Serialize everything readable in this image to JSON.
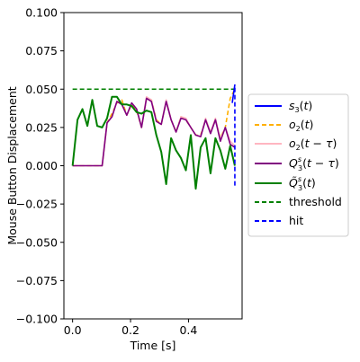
{
  "chart_data": {
    "type": "line",
    "xlabel": "Time [s]",
    "ylabel": "Mouse Button Displacement",
    "xlim": [
      -0.03,
      0.585
    ],
    "ylim": [
      -0.1,
      0.1
    ],
    "xticks": [
      0.0,
      0.2,
      0.4
    ],
    "xtick_labels": [
      "0.0",
      "0.2",
      "0.4"
    ],
    "yticks": [
      -0.1,
      -0.075,
      -0.05,
      -0.025,
      0.0,
      0.025,
      0.05,
      0.075,
      0.1
    ],
    "ytick_labels": [
      "−0.100",
      "−0.075",
      "−0.050",
      "−0.025",
      "0.000",
      "0.025",
      "0.050",
      "0.075",
      "0.100"
    ],
    "grid": false,
    "legend_position": "outside right",
    "x": [
      0.0,
      0.017,
      0.034,
      0.051,
      0.068,
      0.085,
      0.102,
      0.119,
      0.136,
      0.153,
      0.17,
      0.187,
      0.204,
      0.221,
      0.238,
      0.255,
      0.272,
      0.289,
      0.306,
      0.323,
      0.34,
      0.357,
      0.374,
      0.391,
      0.408,
      0.425,
      0.442,
      0.459,
      0.476,
      0.493,
      0.51,
      0.527,
      0.544,
      0.56
    ],
    "series": [
      {
        "name": "s3(t)",
        "color": "#0000ff",
        "dash": "solid",
        "x": [
          0.551,
          0.56
        ],
        "values": [
          0.041,
          0.053
        ]
      },
      {
        "name": "o2(t)",
        "color": "#ffb000",
        "dash": "dashed",
        "values": [
          0.0,
          0.0,
          0.0,
          0.0,
          0.0,
          0.0,
          0.0,
          0.028,
          0.034,
          0.041,
          0.043,
          0.033,
          0.04,
          0.036,
          0.025,
          0.044,
          0.043,
          0.03,
          0.027,
          0.042,
          0.03,
          0.022,
          0.032,
          0.03,
          0.025,
          0.02,
          0.02,
          0.03,
          0.022,
          0.03,
          0.018,
          0.025,
          0.044,
          0.05
        ]
      },
      {
        "name": "o2(t − τ)",
        "color": "#ffb6c1",
        "dash": "solid",
        "values": [
          0.0,
          0.0,
          0.0,
          0.0,
          0.0,
          0.0,
          0.0,
          0.028,
          0.032,
          0.042,
          0.04,
          0.033,
          0.041,
          0.037,
          0.025,
          0.045,
          0.043,
          0.029,
          0.027,
          0.043,
          0.03,
          0.022,
          0.032,
          0.031,
          0.025,
          0.02,
          0.019,
          0.031,
          0.022,
          0.031,
          0.017,
          0.025,
          0.016,
          0.013
        ]
      },
      {
        "name": "Q3s(t − τ)",
        "color": "#800080",
        "dash": "solid",
        "values": [
          0.0,
          0.0,
          0.0,
          0.0,
          0.0,
          0.0,
          0.0,
          0.028,
          0.032,
          0.042,
          0.04,
          0.033,
          0.041,
          0.037,
          0.025,
          0.044,
          0.042,
          0.029,
          0.027,
          0.042,
          0.03,
          0.022,
          0.031,
          0.03,
          0.025,
          0.02,
          0.019,
          0.03,
          0.021,
          0.03,
          0.016,
          0.025,
          0.014,
          0.012
        ]
      },
      {
        "name": "Q̃3s(t)",
        "color": "#008000",
        "dash": "solid",
        "values": [
          0.0,
          0.03,
          0.037,
          0.026,
          0.043,
          0.026,
          0.025,
          0.031,
          0.045,
          0.045,
          0.04,
          0.04,
          0.039,
          0.035,
          0.034,
          0.036,
          0.035,
          0.02,
          0.009,
          -0.012,
          0.018,
          0.01,
          0.005,
          -0.003,
          0.02,
          -0.015,
          0.012,
          0.018,
          -0.005,
          0.018,
          0.01,
          -0.002,
          0.013,
          0.0
        ]
      },
      {
        "name": "threshold",
        "color": "#008000",
        "dash": "dashed",
        "x": [
          0.0,
          0.56
        ],
        "values": [
          0.05,
          0.05
        ]
      },
      {
        "name": "hit",
        "color": "#0000ff",
        "dash": "dashed",
        "x": [
          0.56,
          0.56
        ],
        "values": [
          -0.013,
          0.053
        ]
      }
    ]
  }
}
